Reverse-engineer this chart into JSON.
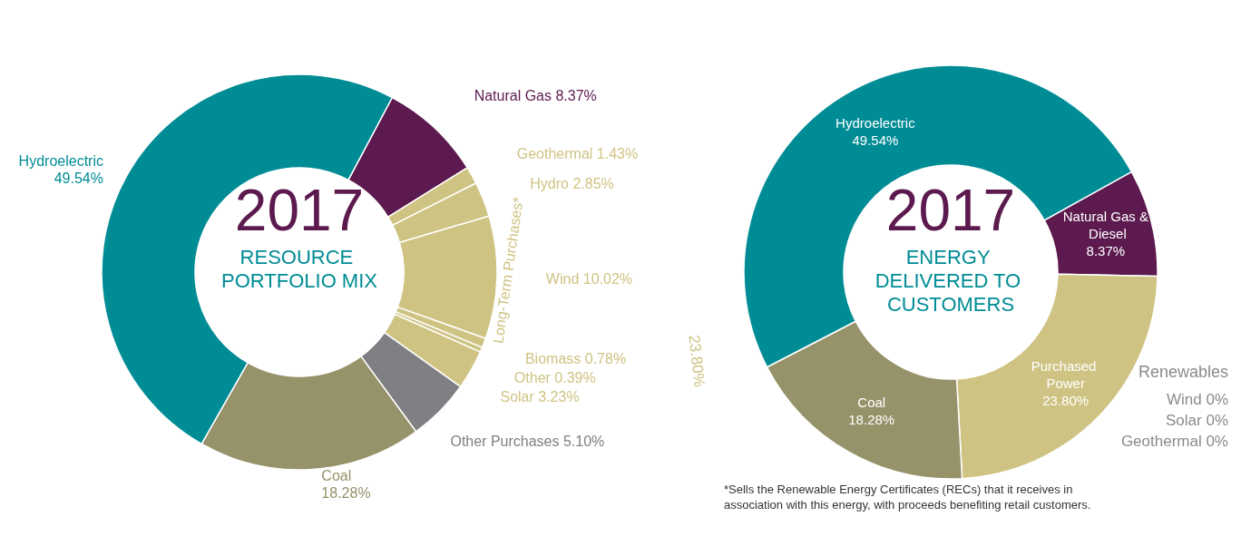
{
  "chart_data": [
    {
      "type": "donut",
      "title": "2017",
      "subtitle": "RESOURCE PORTFOLIO MIX",
      "categories": [
        "Natural Gas",
        "Geothermal",
        "Hydro",
        "Wind",
        "Biomass",
        "Other",
        "Solar",
        "Other Purchases",
        "Coal",
        "Hydroelectric"
      ],
      "values": [
        8.37,
        1.43,
        2.85,
        10.02,
        0.78,
        0.39,
        3.23,
        5.1,
        18.28,
        49.54
      ],
      "colors": [
        "#5c1a4f",
        "#cfc383",
        "#cfc383",
        "#cfc383",
        "#cfc383",
        "#cfc383",
        "#cfc383",
        "#808084",
        "#96926a",
        "#008c95"
      ],
      "value_labels": [
        "8.37%",
        "1.43%",
        "2.85%",
        "10.02%",
        "0.78%",
        "0.39%",
        "3.23%",
        "5.10%",
        "18.28%",
        "49.54%"
      ],
      "legend": false,
      "annotations": [
        "Long-Term Purchases*",
        "23.80%"
      ]
    },
    {
      "type": "donut",
      "title": "2017",
      "subtitle": "ENERGY DELIVERED TO CUSTOMERS",
      "categories": [
        "Natural Gas & Diesel",
        "Purchased Power",
        "Coal",
        "Hydroelectric"
      ],
      "values": [
        8.37,
        23.8,
        18.28,
        49.54
      ],
      "colors": [
        "#5c1a4f",
        "#cfc383",
        "#96926a",
        "#008c95"
      ],
      "value_labels": [
        "8.37%",
        "23.80%",
        "18.28%",
        "49.54%"
      ],
      "legend": false,
      "annotations": [
        "Renewables",
        "Wind 0%",
        "Solar 0%",
        "Geothermal 0%",
        "*Sells the Renewable Energy Certificates (RECs) that it receives in association with this energy, with proceeds benefiting retail customers."
      ]
    }
  ]
}
